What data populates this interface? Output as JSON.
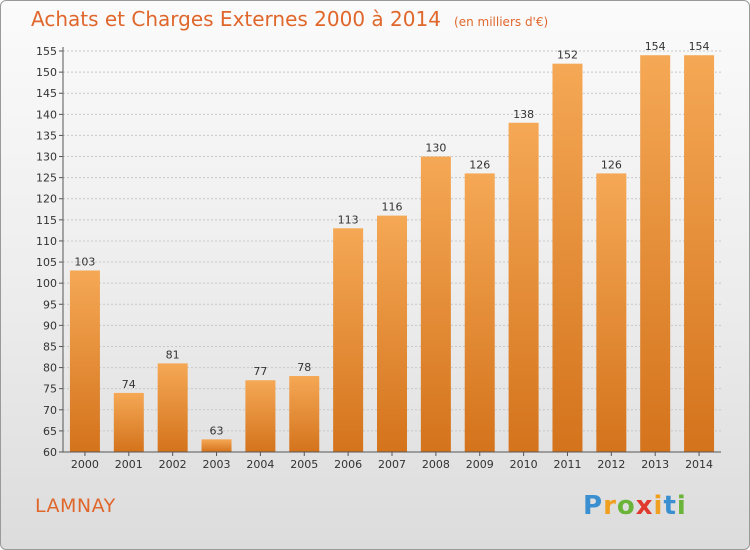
{
  "title": "Achats et Charges Externes 2000 à 2014",
  "unit": "(en milliers d'€)",
  "commune": "LAMNAY",
  "logo": {
    "letters": [
      "P",
      "r",
      "o",
      "x",
      "i",
      "t",
      "i"
    ],
    "colors": [
      "#3a8fd0",
      "#f0a020",
      "#6ab43a",
      "#e03a2e",
      "#f0a020",
      "#3a8fd0",
      "#6ab43a"
    ]
  },
  "colors": {
    "bar_top": "#f5a855",
    "bar_bottom": "#d4731c",
    "title": "#e0672c",
    "axis": "#555555",
    "grid": "#c8c8c8"
  },
  "chart_data": {
    "type": "bar",
    "title": "Achats et Charges Externes 2000 à 2014",
    "categories": [
      "2000",
      "2001",
      "2002",
      "2003",
      "2004",
      "2005",
      "2006",
      "2007",
      "2008",
      "2009",
      "2010",
      "2011",
      "2012",
      "2013",
      "2014"
    ],
    "values": [
      103,
      74,
      81,
      63,
      77,
      78,
      113,
      116,
      130,
      126,
      138,
      152,
      126,
      154,
      154
    ],
    "ylim": [
      60,
      155
    ],
    "yticks": [
      60,
      65,
      70,
      75,
      80,
      85,
      90,
      95,
      100,
      105,
      110,
      115,
      120,
      125,
      130,
      135,
      140,
      145,
      150,
      155
    ],
    "grid": true,
    "xlabel": "",
    "ylabel": ""
  }
}
